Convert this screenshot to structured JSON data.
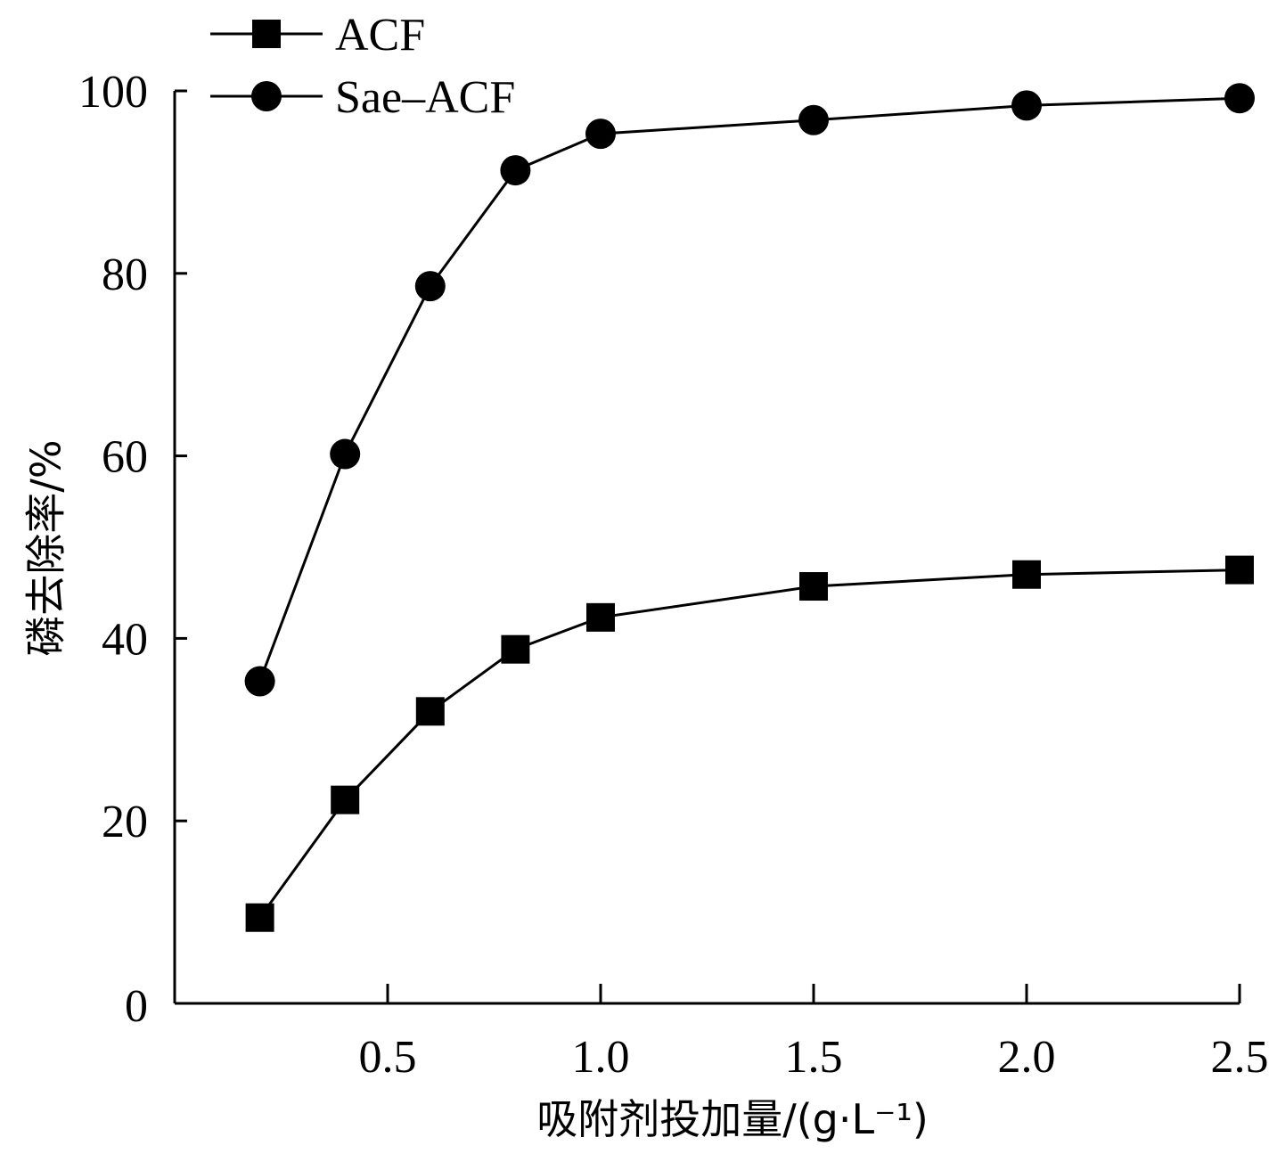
{
  "chart_data": {
    "type": "line",
    "xlabel": "吸附剂投加量/(g·L⁻¹)",
    "ylabel": "磷去除率/%",
    "xlim": [
      0,
      2.5
    ],
    "ylim": [
      0,
      100
    ],
    "xticks": [
      0.5,
      1.0,
      1.5,
      2.0,
      2.5
    ],
    "xtick_labels": [
      "0.5",
      "1.0",
      "1.5",
      "2.0",
      "2.5"
    ],
    "yticks": [
      0,
      20,
      40,
      60,
      80,
      100
    ],
    "ytick_labels": [
      "0",
      "20",
      "40",
      "60",
      "80",
      "100"
    ],
    "legend_position": "top-left",
    "grid": false,
    "series": [
      {
        "name": "ACF",
        "marker": "square",
        "color": "#000000",
        "x": [
          0.2,
          0.4,
          0.6,
          0.8,
          1.0,
          1.5,
          2.0,
          2.5
        ],
        "y": [
          9.4,
          22.3,
          32.0,
          38.8,
          42.3,
          45.7,
          47.0,
          47.5
        ]
      },
      {
        "name": "Sae–ACF",
        "marker": "circle",
        "color": "#000000",
        "x": [
          0.2,
          0.4,
          0.6,
          0.8,
          1.0,
          1.5,
          2.0,
          2.5
        ],
        "y": [
          35.3,
          60.2,
          78.6,
          91.3,
          95.3,
          96.8,
          98.4,
          99.2
        ]
      }
    ]
  }
}
